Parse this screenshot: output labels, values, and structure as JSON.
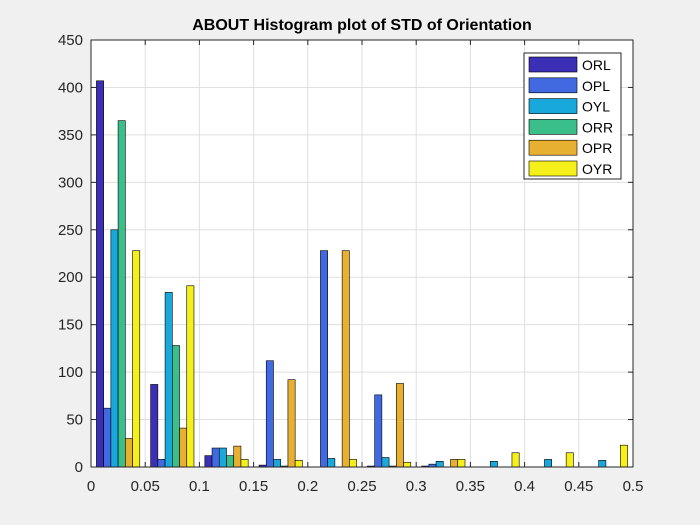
{
  "chart_data": {
    "type": "bar",
    "title": "ABOUT Histogram plot of STD of Orientation",
    "xlabel": "",
    "ylabel": "",
    "xlim": [
      0,
      0.5
    ],
    "ylim": [
      0,
      450
    ],
    "grid": true,
    "legend_position": "top-right",
    "bin_centers": [
      0.025,
      0.075,
      0.125,
      0.175,
      0.225,
      0.275,
      0.325,
      0.375,
      0.425,
      0.475
    ],
    "x_ticks": [
      "0",
      "0.05",
      "0.1",
      "0.15",
      "0.2",
      "0.25",
      "0.3",
      "0.35",
      "0.4",
      "0.45",
      "0.5"
    ],
    "y_ticks": [
      "0",
      "50",
      "100",
      "150",
      "200",
      "250",
      "300",
      "350",
      "400",
      "450"
    ],
    "series": [
      {
        "name": "ORL",
        "color": "#3a2fb5",
        "values": [
          407,
          87,
          12,
          2,
          0,
          1,
          1,
          0,
          0,
          0
        ]
      },
      {
        "name": "OPL",
        "color": "#4169e1",
        "values": [
          62,
          8,
          20,
          112,
          228,
          76,
          3,
          0,
          0,
          0
        ]
      },
      {
        "name": "OYL",
        "color": "#18a8dc",
        "values": [
          250,
          184,
          20,
          8,
          9,
          10,
          6,
          6,
          8,
          7
        ]
      },
      {
        "name": "ORR",
        "color": "#3bbf8a",
        "values": [
          365,
          128,
          12,
          1,
          0,
          1,
          0,
          0,
          0,
          0
        ]
      },
      {
        "name": "OPR",
        "color": "#e8b031",
        "values": [
          30,
          41,
          22,
          92,
          228,
          88,
          8,
          0,
          0,
          0
        ]
      },
      {
        "name": "OYR",
        "color": "#f5f019",
        "values": [
          228,
          191,
          8,
          7,
          8,
          5,
          8,
          15,
          15,
          23
        ]
      }
    ]
  }
}
